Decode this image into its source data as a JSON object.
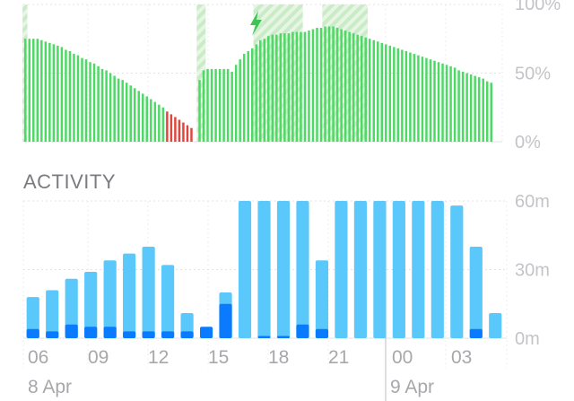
{
  "battery": {
    "chart_data": {
      "type": "bar",
      "title": "",
      "y_tick_labels": [
        "100%",
        "50%",
        "0%"
      ],
      "ylim": [
        0,
        100
      ],
      "charging_indicator": "lightning-bolt-icon",
      "colors": {
        "normal": "#4cd964",
        "low": "#e0463c",
        "charging": "#c9ecc6"
      },
      "values": [
        75,
        75,
        75,
        75,
        74,
        73,
        72,
        71,
        70,
        69,
        67,
        66,
        64,
        63,
        61,
        60,
        58,
        57,
        55,
        53,
        52,
        50,
        48,
        46,
        45,
        43,
        41,
        39,
        37,
        35,
        33,
        31,
        29,
        27,
        25,
        22,
        20,
        18,
        16,
        14,
        12,
        10,
        0,
        45,
        52,
        53,
        53,
        53,
        53,
        53,
        53,
        51,
        56,
        60,
        64,
        66,
        68,
        71,
        74,
        75,
        77,
        78,
        78,
        79,
        79,
        79,
        80,
        80,
        80,
        80,
        81,
        82,
        83,
        83,
        84,
        84,
        84,
        83,
        82,
        81,
        80,
        79,
        78,
        77,
        76,
        75,
        74,
        73,
        72,
        71,
        70,
        69,
        68,
        67,
        66,
        65,
        64,
        63,
        62,
        61,
        60,
        59,
        58,
        57,
        56,
        55,
        54,
        52,
        51,
        50,
        49,
        48,
        47,
        46,
        44,
        43
      ],
      "low_range": [
        35,
        41
      ],
      "charging_ranges": [
        [
          0,
          0
        ],
        [
          43,
          44
        ],
        [
          57,
          68
        ],
        [
          74,
          84
        ]
      ]
    }
  },
  "activity": {
    "section_title": "ACTIVITY",
    "chart_data": {
      "type": "bar",
      "title": "",
      "y_tick_labels": [
        "60m",
        "30m",
        "0m"
      ],
      "ylim": [
        0,
        60
      ],
      "x_tick_labels": [
        "06",
        "09",
        "12",
        "15",
        "18",
        "21",
        "00",
        "03"
      ],
      "date_labels": [
        "8 Apr",
        "9 Apr"
      ],
      "colors": {
        "screen_on": "#5ac8fa",
        "screen_off": "#0a7aff"
      },
      "series": [
        {
          "values": [
            18,
            21,
            26,
            29,
            34,
            37,
            40,
            32,
            11,
            0,
            20,
            60,
            60,
            60,
            60,
            34,
            60,
            60,
            60,
            60,
            60,
            60,
            58,
            40,
            11
          ]
        },
        {
          "values": [
            4,
            3,
            6,
            5,
            5,
            3,
            3,
            3,
            3,
            5,
            15,
            0,
            1,
            1,
            6,
            4,
            0,
            0,
            0,
            0,
            0,
            0,
            0,
            4,
            0
          ]
        }
      ]
    }
  }
}
